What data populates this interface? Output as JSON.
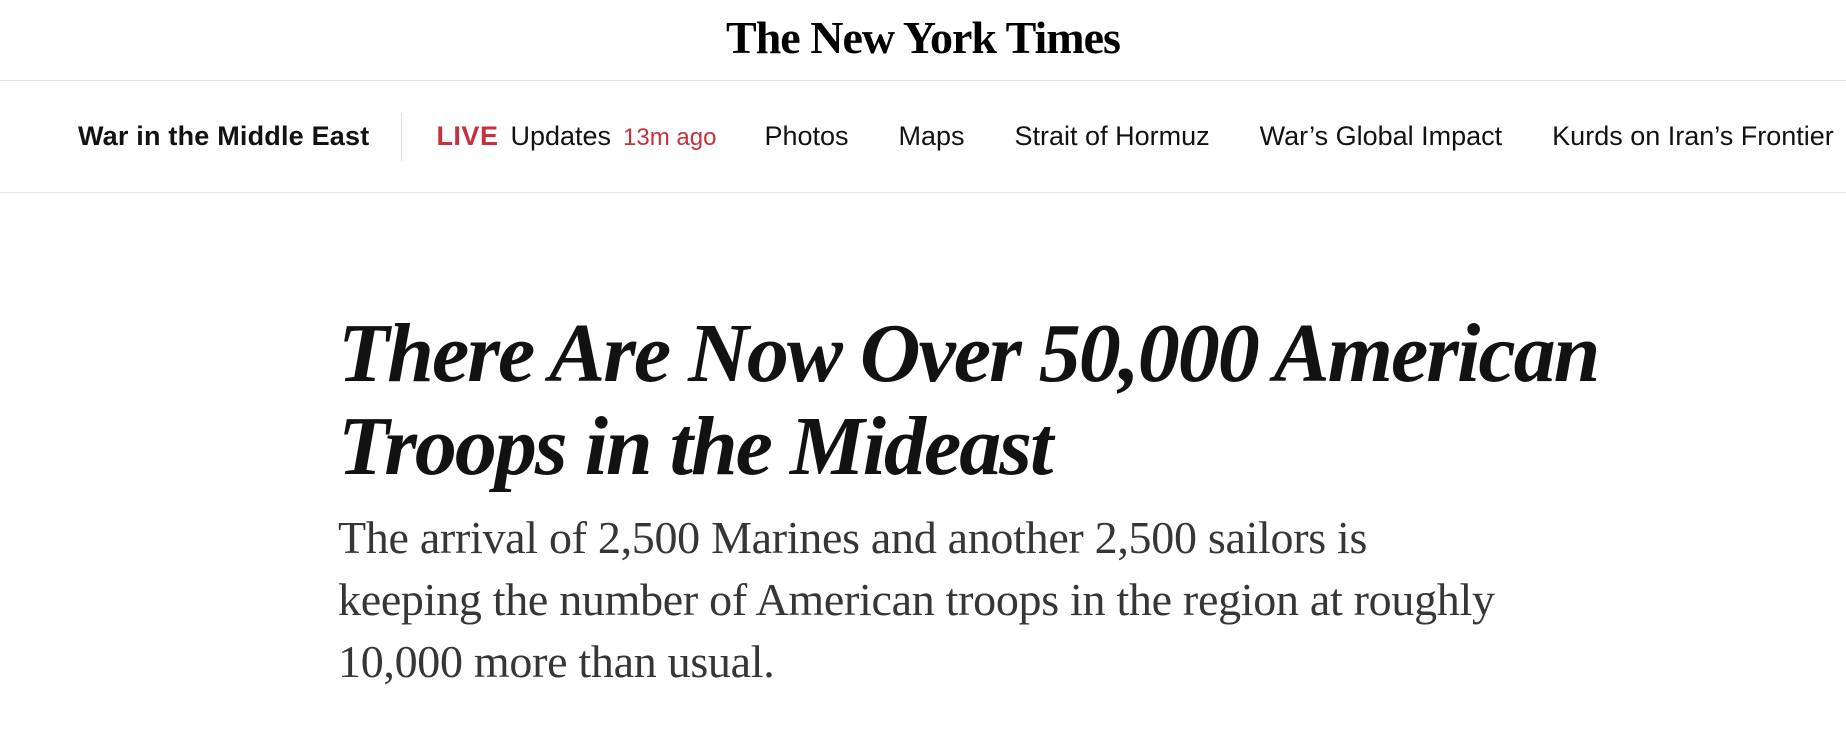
{
  "masthead": {
    "logo_text": "The New York Times"
  },
  "nav": {
    "section_label": "War in the Middle East",
    "live": {
      "badge": "LIVE",
      "label": "Updates",
      "timestamp": "13m ago"
    },
    "links": [
      "Photos",
      "Maps",
      "Strait of Hormuz",
      "War’s Global Impact",
      "Kurds on Iran’s Frontier"
    ]
  },
  "article": {
    "headline": "There Are Now Over 50,000 American Troops in the Mideast",
    "headline_lines": [
      "There Are Now Over 50,000 American",
      "Troops in the Mideast"
    ],
    "summary": "The arrival of 2,500 Marines and another 2,500 sailors is keeping the number of American troops in the region at roughly 10,000 more than usual.",
    "summary_lines": [
      "The arrival of 2,500 Marines and another 2,500 sailors is",
      "keeping the number of American troops in the region at roughly",
      "10,000 more than usual."
    ]
  },
  "colors": {
    "live_red": "#c7303c",
    "headline_text": "#121212",
    "summary_text": "#363636",
    "divider": "#e2e2e2"
  }
}
